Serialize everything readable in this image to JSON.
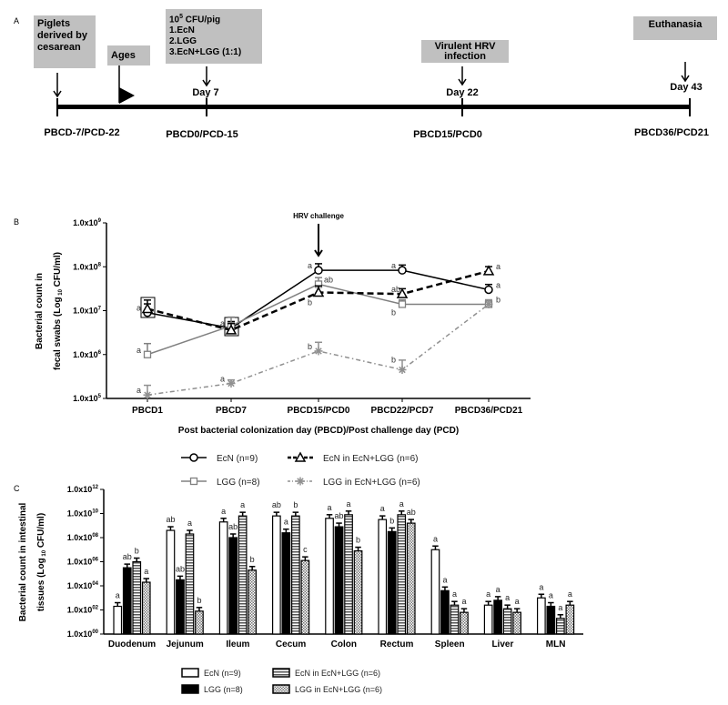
{
  "panel_a": {
    "letter": "A",
    "boxes": {
      "piglets": "Piglets derived by cesarean",
      "ages": "Ages",
      "dose_line1_base": "10",
      "dose_line1_exp": "5",
      "dose_line1_rest": " CFU/pig",
      "dose_items": [
        "1.EcN",
        "2.LGG",
        "3.EcN+LGG (1:1)"
      ],
      "hrv": "Virulent HRV infection",
      "euthanasia": "Euthanasia"
    },
    "days": [
      "Day 7",
      "Day 22",
      "Day 43"
    ],
    "timepoints": [
      "PBCD-7/PCD-22",
      "PBCD0/PCD-15",
      "PBCD15/PCD0",
      "PBCD36/PCD21"
    ]
  },
  "chart_data": [
    {
      "panel": "B",
      "type": "line",
      "annotation": "HRV challenge",
      "ylabel_line1": "Bacterial count in",
      "ylabel_line2": "fecal swabs (Log",
      "ylabel_sub": "10",
      "ylabel_end": " CFU/ml)",
      "xlabel": "Post bacterial colonization day (PBCD)/Post challenge day (PCD)",
      "yscale": "log",
      "ylim": [
        100000,
        1000000000
      ],
      "yticks": [
        {
          "base": "1.0x10",
          "exp": "5"
        },
        {
          "base": "1.0x10",
          "exp": "6"
        },
        {
          "base": "1.0x10",
          "exp": "7"
        },
        {
          "base": "1.0x10",
          "exp": "8"
        },
        {
          "base": "1.0x10",
          "exp": "9"
        }
      ],
      "categories": [
        "PBCD1",
        "PBCD7",
        "PBCD15/PCD0",
        "PBCD22/PCD7",
        "PBCD36/PCD21"
      ],
      "series": [
        {
          "name": "EcN (n=9)",
          "marker": "circle",
          "color": "#000000",
          "dash": "solid",
          "values": [
            9000000,
            4000000,
            83000000,
            83000000,
            30000000
          ],
          "err_log": [
            0.2,
            0.15,
            0.15,
            0.12,
            0.12
          ],
          "letters": [
            "a",
            "a",
            "a",
            "a",
            "a"
          ]
        },
        {
          "name": "LGG (n=8)",
          "marker": "square",
          "color": "#808080",
          "dash": "solid",
          "values": [
            1000000,
            4500000,
            40000000,
            14000000,
            14000000
          ],
          "err_log": [
            0.25,
            0.2,
            0.15,
            0.1,
            0.1
          ],
          "letters": [
            "a",
            "",
            "ab",
            "b",
            "b"
          ]
        },
        {
          "name": "EcN in EcN+LGG (n=6)",
          "marker": "triangle",
          "color": "#000000",
          "dash": "dashed",
          "values": [
            11000000,
            3600000,
            26000000,
            24000000,
            80000000
          ],
          "err_log": [
            0.2,
            0.15,
            0.15,
            0.12,
            0.1
          ],
          "letters": [
            "",
            "",
            "b",
            "ab",
            "a"
          ]
        },
        {
          "name": "LGG in EcN+LGG (n=6)",
          "marker": "asterisk",
          "color": "#909090",
          "dash": "dashdot",
          "values": [
            120000,
            220000,
            1200000,
            450000,
            14000000
          ],
          "err_log": [
            0.22,
            0.08,
            0.2,
            0.22,
            0.1
          ],
          "letters": [
            "a",
            "a",
            "b",
            "b",
            ""
          ]
        }
      ]
    },
    {
      "panel": "C",
      "type": "bar",
      "ylabel_line1": "Bacterial count in intestinal",
      "ylabel_line2": "tissues (Log",
      "ylabel_sub": "10",
      "ylabel_end": " CFU/ml)",
      "yscale": "log",
      "ylim": [
        1,
        1000000000000
      ],
      "yticks": [
        {
          "base": "1.0x10",
          "exp": "00"
        },
        {
          "base": "1.0x10",
          "exp": "02"
        },
        {
          "base": "1.0x10",
          "exp": "04"
        },
        {
          "base": "1.0x10",
          "exp": "06"
        },
        {
          "base": "1.0x10",
          "exp": "08"
        },
        {
          "base": "1.0x10",
          "exp": "10"
        },
        {
          "base": "1.0x10",
          "exp": "12"
        }
      ],
      "categories": [
        "Duodenum",
        "Jejunum",
        "Ileum",
        "Cecum",
        "Colon",
        "Rectum",
        "Spleen",
        "Liver",
        "MLN"
      ],
      "series": [
        {
          "name": "EcN (n=9)",
          "fill": "white",
          "log_values": [
            2.3,
            8.6,
            9.3,
            9.8,
            9.6,
            9.5,
            7.0,
            2.4,
            3.0
          ],
          "letters": [
            "a",
            "ab",
            "a",
            "ab",
            "a",
            "a",
            "a",
            "a",
            "a"
          ]
        },
        {
          "name": "LGG (n=8)",
          "fill": "black",
          "log_values": [
            5.5,
            4.5,
            8.0,
            8.4,
            8.9,
            8.5,
            3.6,
            2.8,
            2.3
          ],
          "letters": [
            "ab",
            "ab",
            "ab",
            "a",
            "ab",
            "b",
            "a",
            "a",
            "a"
          ]
        },
        {
          "name": "EcN in EcN+LGG (n=6)",
          "fill": "horizontal-stripes",
          "log_values": [
            6.0,
            8.3,
            9.8,
            9.8,
            9.9,
            9.9,
            2.4,
            2.1,
            1.3
          ],
          "letters": [
            "b",
            "a",
            "a",
            "b",
            "a",
            "a",
            "a",
            "a",
            "a"
          ]
        },
        {
          "name": "LGG in EcN+LGG (n=6)",
          "fill": "checker",
          "log_values": [
            4.3,
            1.9,
            5.3,
            6.1,
            6.9,
            9.2,
            1.8,
            1.8,
            2.4
          ],
          "letters": [
            "a",
            "b",
            "b",
            "c",
            "b",
            "ab",
            "a",
            "a",
            "a"
          ]
        }
      ]
    }
  ]
}
